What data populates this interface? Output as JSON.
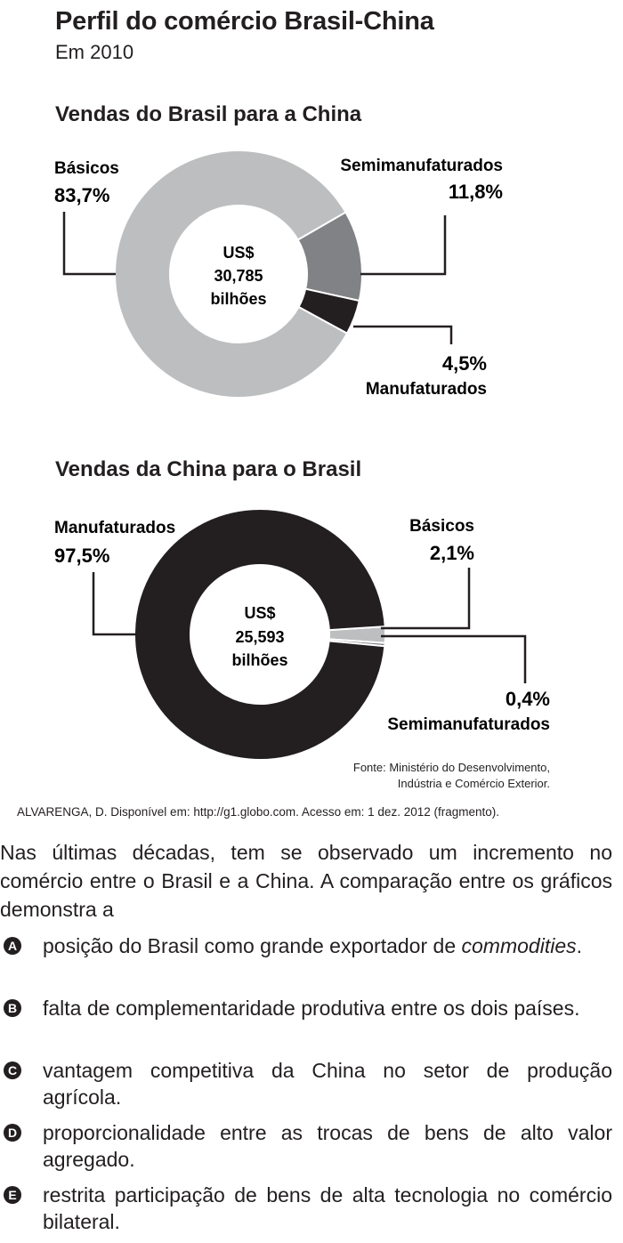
{
  "header": {
    "title": "Perfil do comércio Brasil-China",
    "subtitle": "Em 2010"
  },
  "chart_data": [
    {
      "type": "pie",
      "title": "Vendas do Brasil para a China",
      "center_label": [
        "US$",
        "30,785",
        "bilhões"
      ],
      "slices": [
        {
          "name": "Básicos",
          "value": 83.7,
          "label": "83,7%",
          "color": "#bcbec0"
        },
        {
          "name": "Semimanufaturados",
          "value": 11.8,
          "label": "11,8%",
          "color": "#808285"
        },
        {
          "name": "Manufaturados",
          "value": 4.5,
          "label": "4,5%",
          "color": "#231f20"
        }
      ]
    },
    {
      "type": "pie",
      "title": "Vendas da China para o Brasil",
      "center_label": [
        "US$",
        "25,593",
        "bilhões"
      ],
      "slices": [
        {
          "name": "Manufaturados",
          "value": 97.5,
          "label": "97,5%",
          "color": "#231f20"
        },
        {
          "name": "Básicos",
          "value": 2.1,
          "label": "2,1%",
          "color": "#bcbec0"
        },
        {
          "name": "Semimanufaturados",
          "value": 0.4,
          "label": "0,4%",
          "color": "#808285"
        }
      ],
      "source": [
        "Fonte: Ministério do Desenvolvimento,",
        "Indústria e Comércio Exterior."
      ]
    }
  ],
  "citation": "ALVARENGA, D. Disponível em: http://g1.globo.com. Acesso em: 1 dez. 2012 (fragmento).",
  "question": "Nas últimas décadas, tem se observado um incremento no comércio entre o Brasil e a China. A comparação entre os gráficos demonstra a",
  "options": [
    {
      "letter": "A",
      "text": "posição do Brasil como grande exportador de ",
      "italic": "commodities",
      "after": "."
    },
    {
      "letter": "B",
      "text": "falta de complementaridade produtiva entre os dois países."
    },
    {
      "letter": "C",
      "text": "vantagem competitiva da China no setor de produção agrícola."
    },
    {
      "letter": "D",
      "text": "proporcionalidade entre as trocas de bens de alto valor agregado."
    },
    {
      "letter": "E",
      "text": "restrita participação de bens de alta tecnologia no comércio bilateral."
    }
  ]
}
